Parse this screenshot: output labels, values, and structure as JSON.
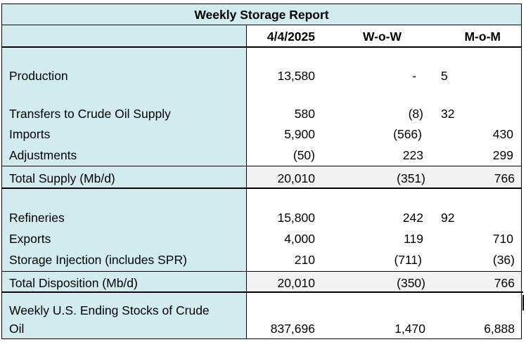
{
  "title": "Weekly Storage Report",
  "columns": {
    "date": "4/4/2025",
    "wow": "W-o-W",
    "mom": "M-o-M"
  },
  "rows": {
    "production": {
      "label": "Production",
      "date": "13,580",
      "wow": "-",
      "mom": "5"
    },
    "transfers": {
      "label": "Transfers to Crude Oil Supply",
      "date": "580",
      "wow": "(8)",
      "mom": "32"
    },
    "imports": {
      "label": "Imports",
      "date": "5,900",
      "wow": "(566)",
      "mom": "430"
    },
    "adjustments": {
      "label": "Adjustments",
      "date": "(50)",
      "wow": "223",
      "mom": "299"
    },
    "total_supply": {
      "label": "Total Supply (Mb/d)",
      "date": "20,010",
      "wow": "(351)",
      "mom": "766"
    },
    "refineries": {
      "label": "Refineries",
      "date": "15,800",
      "wow": "242",
      "mom": "92"
    },
    "exports": {
      "label": "Exports",
      "date": "4,000",
      "wow": "119",
      "mom": "710"
    },
    "storage": {
      "label": "Storage Injection (includes SPR)",
      "date": "210",
      "wow": "(711)",
      "mom": "(36)"
    },
    "total_disp": {
      "label": "Total Disposition (Mb/d)",
      "date": "20,010",
      "wow": "(350)",
      "mom": "766"
    },
    "stocks": {
      "label_line1": "Weekly U.S. Ending Stocks of Crude",
      "label_line2": "Oil",
      "date": "837,696",
      "wow": "1,470",
      "mom": "6,888"
    }
  }
}
